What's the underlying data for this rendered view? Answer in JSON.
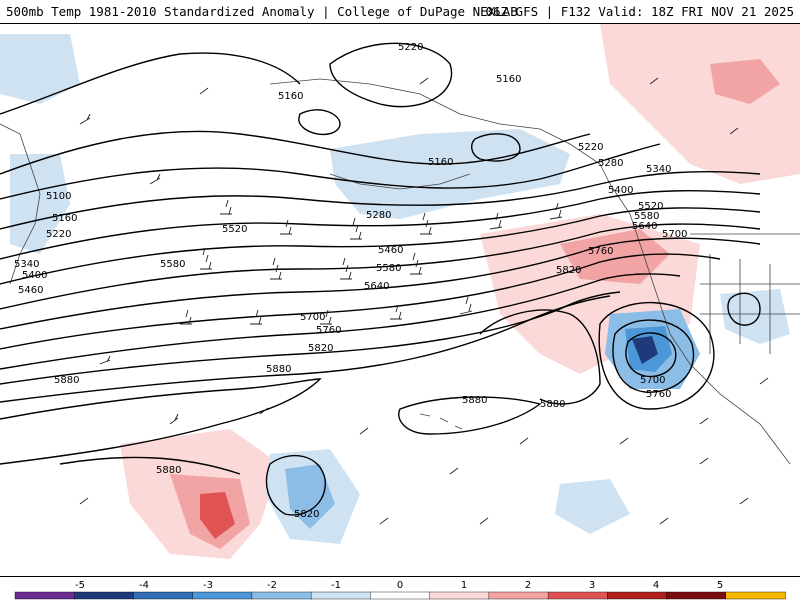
{
  "header": {
    "title_left": "500mb Temp 1981-2010 Standardized Anomaly | College of DuPage NEXLAB",
    "title_right": "06Z GFS | F132 Valid: 18Z FRI NOV 21 2025"
  },
  "map": {
    "contour_labels": [
      "5220",
      "5160",
      "5160",
      "5160",
      "5220",
      "5280",
      "5340",
      "5100",
      "5160",
      "5220",
      "5340",
      "5400",
      "5460",
      "5520",
      "5580",
      "5280",
      "5460",
      "5580",
      "5640",
      "5700",
      "5760",
      "5820",
      "5880",
      "5880",
      "5880",
      "5880",
      "5880",
      "5820",
      "5400",
      "5520",
      "5580",
      "5640",
      "5700",
      "5760",
      "5820",
      "5700",
      "5760"
    ],
    "colors": {
      "contour": "#000000",
      "coast": "#444444",
      "barb": "#222222"
    }
  },
  "legend": {
    "ticks": [
      "-5",
      "-4",
      "-3",
      "-2",
      "-1",
      "0",
      "1",
      "2",
      "3",
      "4",
      "5"
    ],
    "colors": [
      "#6a2c91",
      "#1f3a7a",
      "#2f6db5",
      "#4c97d8",
      "#8cbde6",
      "#cfe2f2",
      "#ffffff",
      "#fbd9d9",
      "#f2a4a4",
      "#e05353",
      "#b01e1e",
      "#7a0e0e",
      "#f5b800"
    ]
  }
}
